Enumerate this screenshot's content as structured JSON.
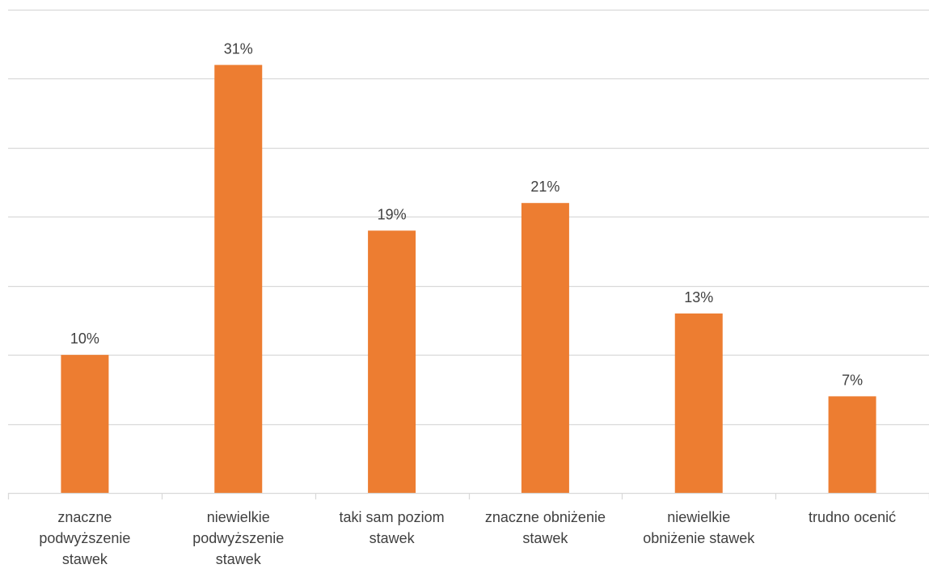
{
  "chart_data": {
    "type": "bar",
    "categories": [
      [
        "znaczne",
        "podwyższenie",
        "stawek"
      ],
      [
        "niewielkie",
        "podwyższenie",
        "stawek"
      ],
      [
        "taki sam poziom",
        "stawek"
      ],
      [
        "znaczne obniżenie",
        "stawek"
      ],
      [
        "niewielkie",
        "obniżenie stawek"
      ],
      [
        "trudno ocenić"
      ]
    ],
    "values": [
      10,
      31,
      19,
      21,
      13,
      7
    ],
    "data_labels": [
      "10%",
      "31%",
      "19%",
      "21%",
      "13%",
      "7%"
    ],
    "unit": "%",
    "ylim": [
      0,
      35
    ],
    "grid_step": 5,
    "grid": true,
    "legend": false,
    "title": "",
    "xlabel": "",
    "ylabel": "",
    "colors": {
      "bar": "#ED7D31",
      "grid": "#D9D9D9",
      "axis": "#D9D9D9",
      "text": "#404040"
    }
  }
}
